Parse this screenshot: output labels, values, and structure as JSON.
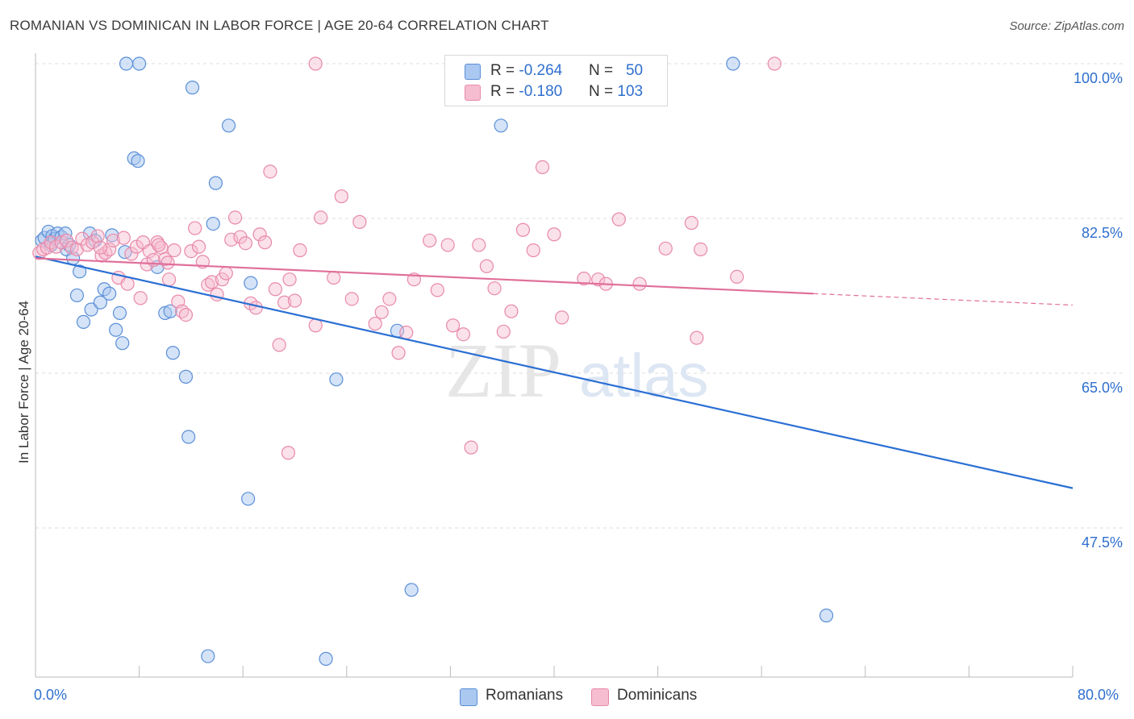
{
  "title": "ROMANIAN VS DOMINICAN IN LABOR FORCE | AGE 20-64 CORRELATION CHART",
  "source": "Source: ZipAtlas.com",
  "watermark": {
    "zip": "ZIP",
    "atlas": "atlas"
  },
  "legend": {
    "rows": [
      {
        "r_label": "R = ",
        "r_value": "-0.264",
        "n_label": "N = ",
        "n_value": "50"
      },
      {
        "r_label": "R = ",
        "r_value": "-0.180",
        "n_label": "N = ",
        "n_value": "103"
      }
    ]
  },
  "bottom_legend": {
    "series1": "Romanians",
    "series2": "Dominicans"
  },
  "colors": {
    "romanian_fill": "#aac8f0",
    "romanian_stroke": "#5b8fd8",
    "romanian_line": "#2a6fd4",
    "dominican_fill": "#f6bdd0",
    "dominican_stroke": "#e889aa",
    "dominican_line": "#e0709a",
    "tick_text": "#2f6fce"
  },
  "chart_data": {
    "type": "scatter",
    "title": "ROMANIAN VS DOMINICAN IN LABOR FORCE | AGE 20-64 CORRELATION CHART",
    "xlabel": "",
    "ylabel": "In Labor Force | Age 20-64",
    "xlim": [
      0,
      80
    ],
    "ylim": [
      30,
      102
    ],
    "x_tick_labels": [
      "0.0%",
      "80.0%"
    ],
    "y_ticks": [
      100.0,
      82.5,
      65.0,
      47.5
    ],
    "y_tick_labels": [
      "100.0%",
      "82.5%",
      "65.0%",
      "47.5%"
    ],
    "grid": true,
    "legend_placement": "top-center",
    "series": [
      {
        "name": "Romanians",
        "trend": {
          "x": [
            0,
            80
          ],
          "y": [
            78.2,
            52.0
          ]
        },
        "points": [
          [
            0.5,
            80.0
          ],
          [
            0.7,
            80.3
          ],
          [
            1.0,
            81.0
          ],
          [
            1.2,
            79.5
          ],
          [
            1.3,
            80.5
          ],
          [
            1.5,
            80.2
          ],
          [
            1.7,
            80.8
          ],
          [
            2.0,
            80.4
          ],
          [
            2.3,
            80.8
          ],
          [
            2.4,
            79.0
          ],
          [
            2.6,
            79.5
          ],
          [
            2.9,
            78.0
          ],
          [
            3.2,
            73.8
          ],
          [
            3.4,
            76.5
          ],
          [
            3.7,
            70.8
          ],
          [
            4.2,
            80.8
          ],
          [
            4.3,
            72.2
          ],
          [
            4.6,
            80.0
          ],
          [
            5.0,
            73.0
          ],
          [
            5.3,
            74.5
          ],
          [
            5.7,
            74.0
          ],
          [
            5.9,
            80.6
          ],
          [
            6.2,
            69.9
          ],
          [
            6.5,
            71.8
          ],
          [
            6.7,
            68.4
          ],
          [
            6.9,
            78.7
          ],
          [
            7.0,
            100.0
          ],
          [
            7.6,
            89.3
          ],
          [
            7.9,
            89.0
          ],
          [
            8.0,
            100.0
          ],
          [
            9.4,
            77.0
          ],
          [
            10.0,
            71.8
          ],
          [
            10.4,
            72.0
          ],
          [
            10.6,
            67.3
          ],
          [
            11.6,
            64.6
          ],
          [
            11.8,
            57.8
          ],
          [
            12.1,
            97.3
          ],
          [
            13.3,
            33.0
          ],
          [
            13.7,
            81.9
          ],
          [
            13.9,
            86.5
          ],
          [
            14.9,
            93.0
          ],
          [
            16.6,
            75.2
          ],
          [
            16.4,
            50.8
          ],
          [
            22.4,
            32.7
          ],
          [
            23.2,
            64.3
          ],
          [
            27.9,
            69.8
          ],
          [
            29.0,
            40.5
          ],
          [
            35.9,
            93.0
          ],
          [
            53.8,
            100.0
          ],
          [
            61.0,
            37.6
          ]
        ]
      },
      {
        "name": "Dominicans",
        "trend": {
          "x": [
            0,
            60
          ],
          "y": [
            78.0,
            74.0
          ]
        },
        "trend_dashed": {
          "x": [
            60,
            80
          ],
          "y": [
            74.0,
            72.7
          ]
        },
        "points": [
          [
            0.3,
            78.6
          ],
          [
            0.6,
            79.0
          ],
          [
            0.9,
            79.2
          ],
          [
            1.2,
            79.8
          ],
          [
            1.6,
            79.3
          ],
          [
            2.0,
            79.8
          ],
          [
            2.4,
            80.0
          ],
          [
            2.8,
            79.2
          ],
          [
            3.2,
            79.0
          ],
          [
            3.6,
            80.2
          ],
          [
            4.0,
            79.5
          ],
          [
            4.4,
            79.8
          ],
          [
            4.8,
            80.5
          ],
          [
            5.1,
            78.3
          ],
          [
            5.4,
            78.6
          ],
          [
            5.7,
            79.0
          ],
          [
            6.0,
            80.0
          ],
          [
            6.4,
            75.8
          ],
          [
            6.8,
            80.3
          ],
          [
            7.1,
            75.1
          ],
          [
            7.4,
            78.5
          ],
          [
            7.8,
            79.3
          ],
          [
            8.1,
            73.5
          ],
          [
            8.3,
            79.8
          ],
          [
            8.6,
            77.3
          ],
          [
            8.8,
            78.8
          ],
          [
            9.1,
            77.8
          ],
          [
            9.4,
            79.8
          ],
          [
            9.7,
            79.2
          ],
          [
            10.0,
            77.9
          ],
          [
            10.3,
            75.6
          ],
          [
            10.7,
            78.9
          ],
          [
            11.0,
            73.1
          ],
          [
            11.3,
            72.0
          ],
          [
            11.6,
            71.6
          ],
          [
            12.0,
            78.8
          ],
          [
            12.3,
            81.4
          ],
          [
            12.6,
            79.3
          ],
          [
            12.9,
            77.6
          ],
          [
            13.3,
            75.0
          ],
          [
            13.6,
            75.3
          ],
          [
            14.0,
            73.9
          ],
          [
            14.4,
            75.6
          ],
          [
            14.7,
            76.3
          ],
          [
            15.1,
            80.1
          ],
          [
            15.4,
            82.6
          ],
          [
            15.8,
            80.4
          ],
          [
            16.2,
            79.7
          ],
          [
            16.6,
            72.9
          ],
          [
            17.0,
            72.4
          ],
          [
            17.3,
            80.7
          ],
          [
            17.7,
            79.8
          ],
          [
            18.1,
            87.8
          ],
          [
            18.5,
            74.5
          ],
          [
            18.8,
            68.2
          ],
          [
            19.2,
            73.0
          ],
          [
            19.6,
            75.6
          ],
          [
            20.0,
            73.2
          ],
          [
            20.4,
            78.9
          ],
          [
            21.6,
            70.4
          ],
          [
            22.0,
            82.6
          ],
          [
            23.0,
            75.8
          ],
          [
            23.6,
            85.0
          ],
          [
            24.4,
            73.4
          ],
          [
            25.0,
            82.1
          ],
          [
            26.2,
            70.6
          ],
          [
            26.7,
            71.9
          ],
          [
            27.3,
            73.4
          ],
          [
            28.0,
            67.3
          ],
          [
            28.6,
            69.6
          ],
          [
            29.2,
            75.6
          ],
          [
            30.4,
            80.0
          ],
          [
            31.0,
            74.4
          ],
          [
            31.8,
            79.5
          ],
          [
            32.2,
            70.4
          ],
          [
            33.0,
            69.4
          ],
          [
            33.6,
            56.6
          ],
          [
            34.2,
            79.5
          ],
          [
            34.8,
            77.1
          ],
          [
            35.4,
            74.6
          ],
          [
            36.1,
            69.7
          ],
          [
            36.7,
            72.0
          ],
          [
            37.6,
            81.2
          ],
          [
            38.4,
            78.9
          ],
          [
            39.1,
            88.3
          ],
          [
            40.0,
            80.7
          ],
          [
            40.6,
            71.3
          ],
          [
            42.3,
            75.7
          ],
          [
            43.4,
            75.6
          ],
          [
            44.0,
            75.1
          ],
          [
            45.0,
            82.4
          ],
          [
            46.6,
            75.1
          ],
          [
            48.6,
            79.1
          ],
          [
            50.6,
            82.0
          ],
          [
            51.0,
            69.0
          ],
          [
            51.3,
            79.0
          ],
          [
            54.1,
            75.9
          ],
          [
            57.0,
            100.0
          ],
          [
            10.2,
            77.5
          ],
          [
            19.5,
            56.0
          ],
          [
            21.6,
            100.0
          ],
          [
            5.0,
            79.2
          ],
          [
            9.5,
            79.5
          ]
        ]
      }
    ]
  }
}
